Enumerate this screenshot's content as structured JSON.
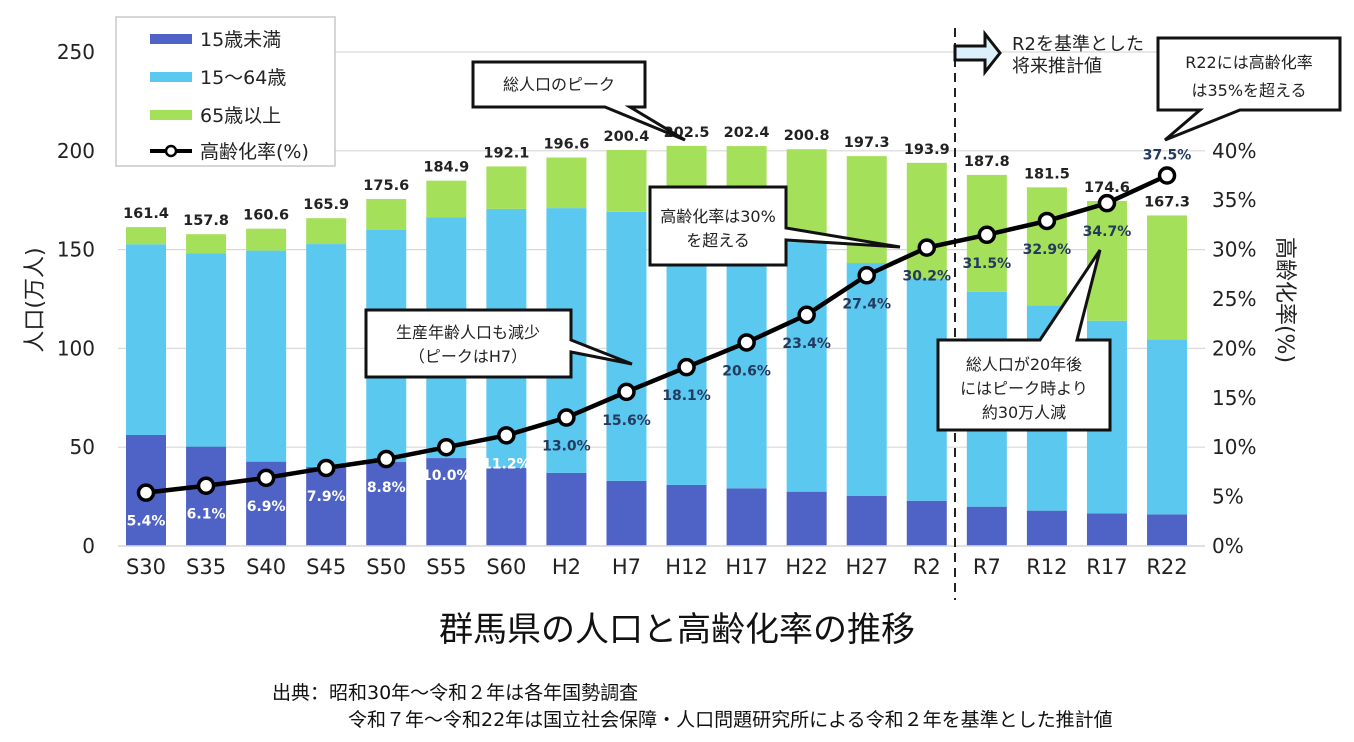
{
  "chart_data": {
    "type": "bar",
    "stacked": true,
    "title": "群馬県の人口と高齢化率の推移",
    "ylabel": "人口(万人)",
    "y2label": "高齢化率(%)",
    "ylim": [
      0,
      250
    ],
    "yticks": [
      "0",
      "50",
      "100",
      "150",
      "200",
      "250"
    ],
    "y2lim": [
      0,
      50
    ],
    "y2ticks": [
      "0%",
      "5%",
      "10%",
      "15%",
      "20%",
      "25%",
      "30%",
      "35%",
      "40%"
    ],
    "grid": true,
    "legend_position": "top-left",
    "categories": [
      "S30",
      "S35",
      "S40",
      "S45",
      "S50",
      "S55",
      "S60",
      "H2",
      "H7",
      "H12",
      "H17",
      "H22",
      "H27",
      "R2",
      "R7",
      "R12",
      "R17",
      "R22"
    ],
    "series": [
      {
        "name": "15歳未満",
        "color": "#4f63c6",
        "values": [
          56.2,
          50.3,
          42.7,
          40.0,
          42.5,
          44.5,
          39.5,
          37.0,
          33.0,
          30.9,
          29.2,
          27.5,
          25.3,
          22.9,
          19.9,
          17.9,
          16.5,
          16.0
        ]
      },
      {
        "name": "15～64歳",
        "color": "#5bc8f0",
        "values": [
          96.5,
          97.9,
          106.8,
          112.8,
          117.6,
          121.9,
          131.1,
          134.0,
          136.1,
          134.9,
          131.5,
          126.3,
          117.9,
          112.4,
          108.7,
          103.9,
          97.5,
          88.6
        ]
      },
      {
        "name": "65歳以上",
        "color": "#a5e05a",
        "values": [
          8.7,
          9.6,
          11.1,
          13.1,
          15.5,
          18.5,
          21.5,
          25.6,
          31.3,
          36.7,
          41.7,
          47.0,
          54.1,
          58.6,
          59.2,
          59.7,
          60.6,
          62.7
        ]
      }
    ],
    "totals": [
      "161.4",
      "157.8",
      "160.6",
      "165.9",
      "175.6",
      "184.9",
      "192.1",
      "196.6",
      "200.4",
      "202.5",
      "202.4",
      "200.8",
      "197.3",
      "193.9",
      "187.8",
      "181.5",
      "174.6",
      "167.3"
    ],
    "line_series": {
      "name": "高齢化率(%)",
      "axis": "right",
      "color": "#000000",
      "values": [
        5.4,
        6.1,
        6.9,
        7.9,
        8.8,
        10.0,
        11.2,
        13.0,
        15.6,
        18.1,
        20.6,
        23.4,
        27.4,
        30.2,
        31.5,
        32.9,
        34.7,
        37.5
      ],
      "labels": [
        "5.4%",
        "6.1%",
        "6.9%",
        "7.9%",
        "8.8%",
        "10.0%",
        "11.2%",
        "13.0%",
        "15.6%",
        "18.1%",
        "20.6%",
        "23.4%",
        "27.4%",
        "30.2%",
        "31.5%",
        "32.9%",
        "34.7%",
        "37.5%"
      ]
    },
    "projection_start": "R7",
    "projection_note": [
      "R2を基準とした",
      "将来推計値"
    ],
    "annotations": [
      {
        "lines": [
          "総人口のピーク"
        ],
        "target": "H12"
      },
      {
        "lines": [
          "生産年齢人口も減少",
          "（ピークはH7）"
        ],
        "target": "H7"
      },
      {
        "lines": [
          "高齢化率は30%",
          "を超える"
        ],
        "target": "R2"
      },
      {
        "lines": [
          "総人口が20年後",
          "にはピーク時より",
          "約30万人減"
        ],
        "target": "R17"
      },
      {
        "lines": [
          "R22には高齢化率",
          "は35%を超える"
        ],
        "target": "R22"
      }
    ]
  },
  "source": {
    "line1": "出典：昭和30年～令和２年は各年国勢調査",
    "line2": "令和７年～令和22年は国立社会保障・人口問題研究所による令和２年を基準とした推計値"
  }
}
